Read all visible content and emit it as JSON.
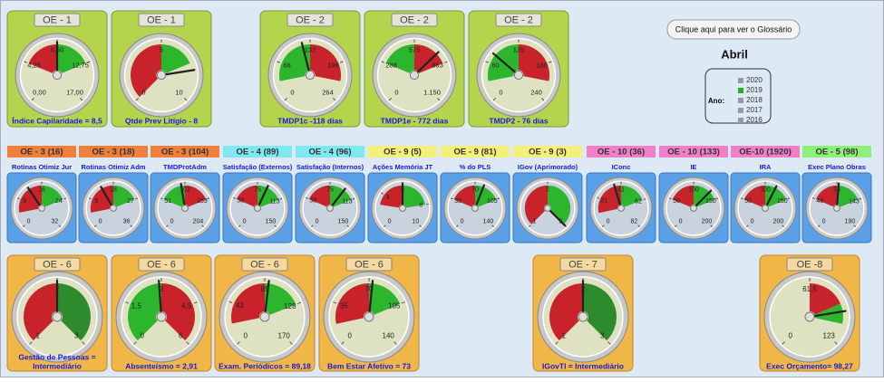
{
  "header": {
    "button": "Clique aqui para ver o Glossário",
    "month": "Abril",
    "year_label": "Ano:",
    "years": [
      {
        "label": "2020",
        "color": "#9a9a9a"
      },
      {
        "label": "2019",
        "color": "#22b322"
      },
      {
        "label": "2018",
        "color": "#9a9a9a"
      },
      {
        "label": "2017",
        "color": "#9a9a9a"
      },
      {
        "label": "2016",
        "color": "#9a9a9a"
      }
    ]
  },
  "top": [
    {
      "tag": "OE - 1",
      "caption": "Índice Capilaridade = 8,5",
      "value": 8.5,
      "ticks": [
        {
          "value": 0,
          "label": "0,00"
        },
        {
          "value": 4.25,
          "label": "4,25"
        },
        {
          "value": 8.5,
          "label": "8,50"
        },
        {
          "value": 12.75,
          "label": "12,75"
        },
        {
          "value": 17,
          "label": "17,00"
        }
      ],
      "zones": [
        {
          "from": 4.25,
          "to": 8.5,
          "color": "#c8232b"
        },
        {
          "from": 8.5,
          "to": 12.75,
          "color": "#2db52d"
        }
      ]
    },
    {
      "tag": "OE - 1",
      "caption": "Qtde Prev Litígio - 8",
      "value": 8,
      "ticks": [
        0,
        5,
        10
      ],
      "zones": [
        {
          "from": 0,
          "to": 5,
          "color": "#c8232b"
        },
        {
          "from": 5,
          "to": 7.5,
          "color": "#2db52d"
        }
      ]
    },
    {
      "tag": "OE - 2",
      "caption": "TMDP1c -118 dias",
      "value": 118,
      "ticks": [
        0,
        66,
        132,
        198,
        264
      ],
      "zones": [
        {
          "from": 33,
          "to": 132,
          "color": "#2db52d"
        },
        {
          "from": 132,
          "to": 231,
          "color": "#c8232b"
        }
      ]
    },
    {
      "tag": "OE - 2",
      "caption": "TMDP1e - 772 dias",
      "value": 772,
      "ticks": [
        0,
        288,
        575,
        863,
        {
          "value": 1150,
          "label": "1.150"
        }
      ],
      "zones": [
        {
          "from": 288,
          "to": 575,
          "color": "#2db52d"
        },
        {
          "from": 575,
          "to": 863,
          "color": "#c8232b"
        }
      ]
    },
    {
      "tag": "OE - 2",
      "caption": "TMDP2 - 76 dias",
      "value": 76,
      "ticks": [
        0,
        60,
        120,
        180,
        240
      ],
      "zones": [
        {
          "from": 30,
          "to": 120,
          "color": "#2db52d"
        },
        {
          "from": 120,
          "to": 210,
          "color": "#c8232b"
        }
      ]
    }
  ],
  "middle": [
    {
      "tag": "OE - 3 (16)",
      "tag_color": "#f07f3c",
      "title": "Rotinas Otimiz Jur",
      "value": 12,
      "ticks": [
        0,
        8,
        16,
        24,
        32
      ],
      "zones": [
        {
          "from": 4,
          "to": 16,
          "color": "#c8232b"
        },
        {
          "from": 16,
          "to": 24,
          "color": "#2db52d"
        }
      ]
    },
    {
      "tag": "OE - 3 (18)",
      "tag_color": "#f07f3c",
      "title": "Rotinas Otimiz Adm",
      "value": 14,
      "ticks": [
        0,
        9,
        18,
        27,
        36
      ],
      "zones": [
        {
          "from": 4.5,
          "to": 18,
          "color": "#c8232b"
        },
        {
          "from": 18,
          "to": 27,
          "color": "#2db52d"
        }
      ]
    },
    {
      "tag": "OE - 3 (104)",
      "tag_color": "#f07f3c",
      "title": "TMDProtAdm",
      "value": 95,
      "ticks": [
        0,
        51,
        102,
        153,
        204
      ],
      "zones": [
        {
          "from": 51,
          "to": 102,
          "color": "#2db52d"
        },
        {
          "from": 102,
          "to": 153,
          "color": "#c8232b"
        }
      ]
    },
    {
      "tag": "OE - 4 (89)",
      "tag_color": "#7fe8f0",
      "title": "Satisfação (Externos)",
      "value": 89,
      "ticks": [
        0,
        38,
        75,
        113,
        150
      ],
      "zones": [
        {
          "from": 38,
          "to": 75,
          "color": "#c8232b"
        },
        {
          "from": 75,
          "to": 113,
          "color": "#2db52d"
        }
      ]
    },
    {
      "tag": "OE - 4 (96)",
      "tag_color": "#7fe8f0",
      "title": "Satisfação (Internos)",
      "value": 96,
      "ticks": [
        0,
        38,
        75,
        113,
        150
      ],
      "zones": [
        {
          "from": 38,
          "to": 75,
          "color": "#c8232b"
        },
        {
          "from": 75,
          "to": 113,
          "color": "#2db52d"
        }
      ]
    },
    {
      "tag": "OE - 9 (5)",
      "tag_color": "#f5f07a",
      "title": "Ações Memória JT",
      "value": 5,
      "ticks": [
        0,
        3,
        5,
        8,
        10
      ],
      "zones": [
        {
          "from": 2,
          "to": 5,
          "color": "#c8232b"
        },
        {
          "from": 5,
          "to": 8,
          "color": "#2db52d"
        }
      ]
    },
    {
      "tag": "OE - 9 (81)",
      "tag_color": "#f5f07a",
      "title": "% do PLS",
      "value": 81,
      "ticks": [
        0,
        35,
        70,
        105,
        140
      ],
      "zones": [
        {
          "from": 35,
          "to": 70,
          "color": "#c8232b"
        },
        {
          "from": 70,
          "to": 105,
          "color": "#2db52d"
        }
      ]
    },
    {
      "tag": "OE - 9 (3)",
      "tag_color": "#f5f07a",
      "title": "IGov (Aprimorado)",
      "value": 3,
      "ticks": [
        1,
        2,
        3
      ],
      "zones": [
        {
          "from": 1,
          "to": 2,
          "color": "#c8232b"
        },
        {
          "from": 2,
          "to": 3,
          "color": "#2db52d"
        }
      ]
    },
    {
      "tag": "OE - 10 (36)",
      "tag_color": "#f07fc8",
      "title": "IConc",
      "value": 36,
      "ticks": [
        0,
        21,
        41,
        62,
        82
      ],
      "zones": [
        {
          "from": 10,
          "to": 41,
          "color": "#c8232b"
        },
        {
          "from": 41,
          "to": 62,
          "color": "#2db52d"
        }
      ]
    },
    {
      "tag": "OE - 10 (133)",
      "tag_color": "#f07fc8",
      "title": "IE",
      "value": 133,
      "ticks": [
        0,
        50,
        100,
        150,
        200
      ],
      "zones": [
        {
          "from": 50,
          "to": 100,
          "color": "#c8232b"
        },
        {
          "from": 100,
          "to": 150,
          "color": "#2db52d"
        }
      ]
    },
    {
      "tag": "OE-10 (1920)",
      "tag_color": "#f07fc8",
      "title": "IRA",
      "value": 120,
      "ticks": [
        0,
        50,
        100,
        150,
        200
      ],
      "zones": [
        {
          "from": 50,
          "to": 100,
          "color": "#c8232b"
        },
        {
          "from": 100,
          "to": 150,
          "color": "#2db52d"
        }
      ]
    },
    {
      "tag": "OE - 5 (98)",
      "tag_color": "#8ef07a",
      "title": "Exec Plano Obras",
      "value": 98,
      "ticks": [
        0,
        48,
        95,
        143,
        190
      ],
      "zones": [
        {
          "from": 48,
          "to": 95,
          "color": "#c8232b"
        },
        {
          "from": 95,
          "to": 143,
          "color": "#2db52d"
        }
      ]
    }
  ],
  "bottom": [
    {
      "tag": "OE - 6",
      "caption": [
        "Gestão de Pessoas =",
        "Intermediário"
      ],
      "value": 2,
      "ticks": [
        1,
        2,
        3
      ],
      "zones": [
        {
          "from": 1,
          "to": 2,
          "color": "#c8232b"
        },
        {
          "from": 2,
          "to": 3,
          "color": "#2d8a2d"
        }
      ]
    },
    {
      "tag": "OE - 6",
      "caption": "Absenteísmo = 2,91",
      "value": 2.91,
      "ticks": [
        0,
        {
          "value": 1.5,
          "label": "1,5"
        },
        3,
        {
          "value": 4.5,
          "label": "4,5"
        },
        6
      ],
      "zones": [
        {
          "from": 0,
          "to": 3,
          "color": "#2db52d"
        },
        {
          "from": 3,
          "to": 6,
          "color": "#c8232b"
        }
      ]
    },
    {
      "tag": "OE - 6",
      "caption": "Exam. Periódicos = 89,18",
      "value": 89.18,
      "ticks": [
        0,
        43,
        85,
        128,
        170
      ],
      "zones": [
        {
          "from": 21,
          "to": 85,
          "color": "#c8232b"
        },
        {
          "from": 85,
          "to": 128,
          "color": "#2db52d"
        }
      ]
    },
    {
      "tag": "OE - 6",
      "caption": "Bem Estar Afetivo = 73",
      "value": 73,
      "ticks": [
        0,
        35,
        70,
        105,
        140
      ],
      "zones": [
        {
          "from": 17,
          "to": 70,
          "color": "#c8232b"
        },
        {
          "from": 70,
          "to": 105,
          "color": "#2db52d"
        }
      ]
    },
    {
      "tag": "OE - 7",
      "caption": "IGovTI = Intermediário",
      "value": 2,
      "ticks": [
        1,
        2,
        3
      ],
      "zones": [
        {
          "from": 1,
          "to": 2,
          "color": "#c8232b"
        },
        {
          "from": 2,
          "to": 3,
          "color": "#2d8a2d"
        }
      ]
    },
    {
      "tag": "OE -8",
      "caption": "Exec Orçamento= 98,27",
      "value": 98.27,
      "ticks": [
        0,
        {
          "value": 61.5,
          "label": "61,5"
        },
        123
      ],
      "zones": [
        {
          "from": 61.5,
          "to": 92,
          "color": "#c8232b"
        },
        {
          "from": 92,
          "to": 108,
          "color": "#2db52d"
        }
      ]
    }
  ]
}
